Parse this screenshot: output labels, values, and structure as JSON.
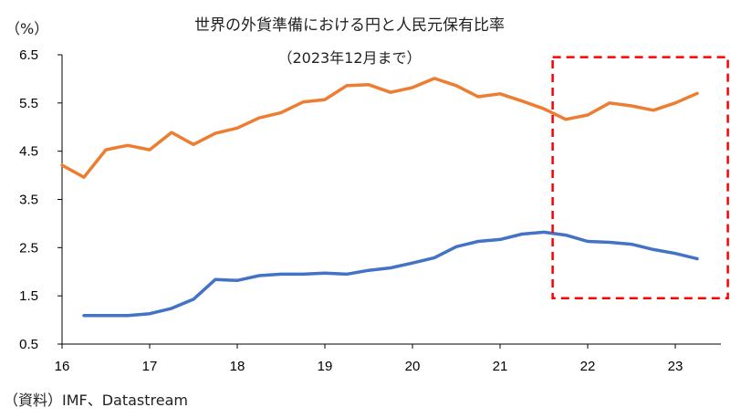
{
  "chart_data": {
    "type": "line",
    "title": "世界の外貨準備における円と人民元保有比率",
    "subtitle": "（2023年12月まで）",
    "ylabel": "（%）",
    "xlabel": "",
    "source": "（資料）IMF、Datastream",
    "ylim": [
      0.5,
      6.5
    ],
    "xlim": [
      16,
      23.4
    ],
    "y_ticks": [
      "6.5",
      "5.5",
      "4.5",
      "3.5",
      "2.5",
      "1.5",
      "0.5"
    ],
    "y_tick_values": [
      6.5,
      5.5,
      4.5,
      3.5,
      2.5,
      1.5,
      0.5
    ],
    "x_ticks": [
      "16",
      "17",
      "18",
      "19",
      "20",
      "21",
      "22",
      "23"
    ],
    "x_tick_values": [
      16,
      17,
      18,
      19,
      20,
      21,
      22,
      23
    ],
    "grid": false,
    "legend": "none",
    "highlight_box": {
      "x_range": [
        21.6,
        23.6
      ],
      "y_range": [
        1.45,
        6.45
      ],
      "color": "#ff0000",
      "style": "dashed"
    },
    "series": [
      {
        "color": "#ed7d31",
        "x_start": 16.0,
        "x_step": 0.25,
        "values": [
          4.21,
          3.96,
          4.53,
          4.62,
          4.53,
          4.89,
          4.64,
          4.87,
          4.98,
          5.19,
          5.3,
          5.52,
          5.57,
          5.86,
          5.88,
          5.72,
          5.82,
          6.01,
          5.86,
          5.63,
          5.69,
          5.54,
          5.38,
          5.16,
          5.25,
          5.5,
          5.44,
          5.35,
          5.5,
          5.7
        ]
      },
      {
        "color": "#4472c4",
        "x_start": 16.25,
        "x_step": 0.25,
        "values": [
          1.09,
          1.09,
          1.09,
          1.13,
          1.24,
          1.43,
          1.84,
          1.82,
          1.92,
          1.95,
          1.95,
          1.97,
          1.95,
          2.03,
          2.08,
          2.18,
          2.29,
          2.52,
          2.63,
          2.67,
          2.78,
          2.82,
          2.76,
          2.63,
          2.61,
          2.57,
          2.46,
          2.38,
          2.27
        ]
      }
    ]
  }
}
